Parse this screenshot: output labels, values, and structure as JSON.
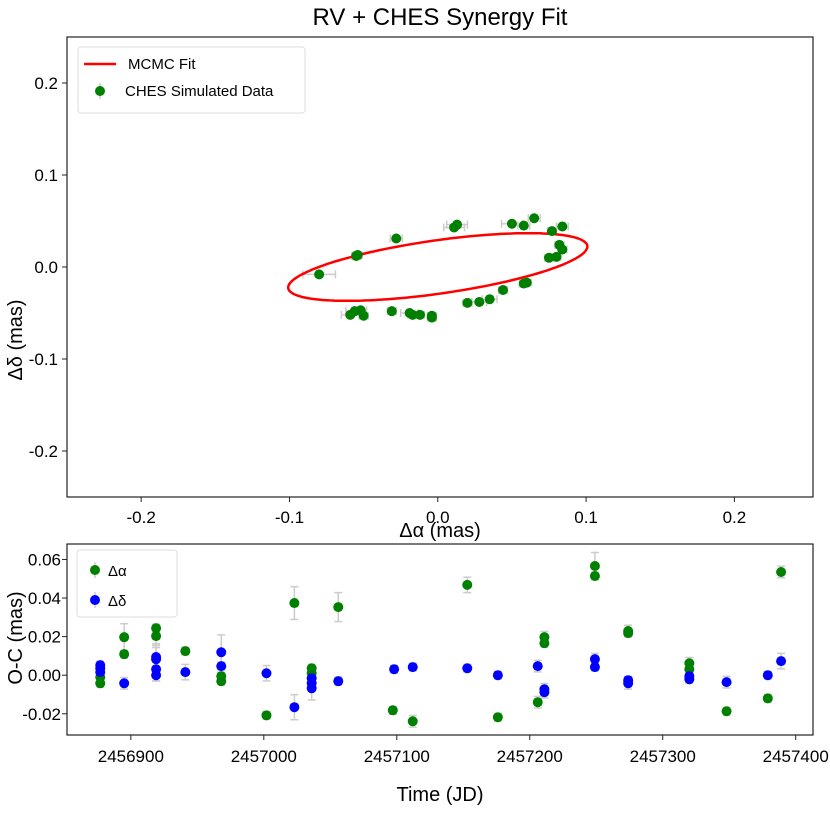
{
  "chart_data": [
    {
      "type": "scatter",
      "title": "RV + CHES Synergy Fit",
      "xlabel": "Δα (mas)",
      "ylabel": "Δδ (mas)",
      "xlim": [
        -0.25,
        0.253
      ],
      "ylim": [
        -0.25,
        0.25
      ],
      "xticks": [
        -0.2,
        -0.1,
        0.0,
        0.1,
        0.2
      ],
      "xtick_labels": [
        "-0.2",
        "-0.1",
        "0.0",
        "0.1",
        "0.2"
      ],
      "yticks": [
        0.2,
        0.1,
        0.0,
        -0.1,
        -0.2
      ],
      "ytick_labels": [
        "0.2",
        "0.1",
        "0.0",
        "-0.1",
        "-0.2"
      ],
      "grid": false,
      "legend": {
        "position": "top-left",
        "entries": [
          {
            "label": "MCMC Fit",
            "kind": "line",
            "color": "#ff0000"
          },
          {
            "label": "CHES Simulated Data",
            "kind": "errorbar-point",
            "color": "#008000"
          }
        ]
      },
      "fit_ellipse": {
        "label": "MCMC Fit",
        "color": "#ff0000",
        "center": [
          0.0,
          0.0
        ],
        "semi_major": 0.1035,
        "semi_minor": 0.0285,
        "rotation_deg": 13.5
      },
      "series": [
        {
          "name": "CHES Simulated Data",
          "color": "#008000",
          "errorbar_color": "#cccccc",
          "points": [
            {
              "x": -0.08,
              "y": -0.008,
              "xerr": 0.011
            },
            {
              "x": -0.055,
              "y": 0.012,
              "xerr": 0.003
            },
            {
              "x": -0.054,
              "y": 0.013,
              "xerr": 0.003
            },
            {
              "x": -0.028,
              "y": 0.031,
              "xerr": 0.004
            },
            {
              "x": 0.011,
              "y": 0.043,
              "xerr": 0.007
            },
            {
              "x": 0.013,
              "y": 0.046,
              "xerr": 0.007
            },
            {
              "x": 0.05,
              "y": 0.047,
              "xerr": 0.007
            },
            {
              "x": 0.058,
              "y": 0.045,
              "xerr": 0.004
            },
            {
              "x": 0.065,
              "y": 0.053,
              "xerr": 0.004
            },
            {
              "x": 0.077,
              "y": 0.039,
              "xerr": 0.003
            },
            {
              "x": 0.084,
              "y": 0.044,
              "xerr": 0.004
            },
            {
              "x": 0.082,
              "y": 0.024,
              "xerr": 0.003
            },
            {
              "x": 0.084,
              "y": 0.019,
              "xerr": 0.003
            },
            {
              "x": 0.075,
              "y": 0.01,
              "xerr": 0.003
            },
            {
              "x": 0.08,
              "y": 0.011,
              "xerr": 0.003
            },
            {
              "x": 0.058,
              "y": -0.018,
              "xerr": 0.003
            },
            {
              "x": 0.06,
              "y": -0.017,
              "xerr": 0.003
            },
            {
              "x": 0.044,
              "y": -0.025,
              "xerr": 0.003
            },
            {
              "x": 0.035,
              "y": -0.035,
              "xerr": 0.005
            },
            {
              "x": 0.028,
              "y": -0.038,
              "xerr": 0.005
            },
            {
              "x": 0.02,
              "y": -0.039,
              "xerr": 0.003
            },
            {
              "x": -0.059,
              "y": -0.052,
              "xerr": 0.006
            },
            {
              "x": -0.056,
              "y": -0.048,
              "xerr": 0.006
            },
            {
              "x": -0.052,
              "y": -0.047,
              "xerr": 0.004
            },
            {
              "x": -0.05,
              "y": -0.053,
              "xerr": 0.003
            },
            {
              "x": -0.031,
              "y": -0.048,
              "xerr": 0.003
            },
            {
              "x": -0.019,
              "y": -0.05,
              "xerr": 0.006
            },
            {
              "x": -0.017,
              "y": -0.052,
              "xerr": 0.003
            },
            {
              "x": -0.012,
              "y": -0.052,
              "xerr": 0.003
            },
            {
              "x": -0.004,
              "y": -0.053,
              "xerr": 0.003
            },
            {
              "x": -0.004,
              "y": -0.055,
              "xerr": 0.003
            }
          ]
        }
      ]
    },
    {
      "type": "scatter",
      "title": "",
      "xlabel": "Time (JD)",
      "ylabel": "O-C (mas)",
      "xlim": [
        2456852,
        2457413
      ],
      "ylim": [
        -0.031,
        0.068
      ],
      "xticks": [
        2456900,
        2457000,
        2457100,
        2457200,
        2457300,
        2457400
      ],
      "xtick_labels": [
        "2456900",
        "2457000",
        "2457100",
        "2457200",
        "2457300",
        "2457400"
      ],
      "yticks": [
        0.06,
        0.04,
        0.02,
        0.0,
        -0.02
      ],
      "ytick_labels": [
        "0.06",
        "0.04",
        "0.02",
        "0.00",
        "-0.02"
      ],
      "grid": false,
      "legend": {
        "position": "top-left",
        "entries": [
          {
            "label": "Δα",
            "kind": "errorbar-point",
            "color": "#008000"
          },
          {
            "label": "Δδ",
            "kind": "errorbar-point",
            "color": "#0000ff"
          }
        ]
      },
      "series": [
        {
          "name": "Δα",
          "color": "#008000",
          "errorbar_color": "#cccccc",
          "points": [
            {
              "t": 2456877,
              "v": -0.0042,
              "err": 0.002
            },
            {
              "t": 2456877,
              "v": -0.001,
              "err": 0.002
            },
            {
              "t": 2456895,
              "v": 0.0197,
              "err": 0.007
            },
            {
              "t": 2456895,
              "v": 0.0109,
              "err": 0.002
            },
            {
              "t": 2456919,
              "v": 0.0244,
              "err": 0.002
            },
            {
              "t": 2456919,
              "v": 0.0203,
              "err": 0.004
            },
            {
              "t": 2456941,
              "v": 0.0125,
              "err": 0.002
            },
            {
              "t": 2456968,
              "v": -0.0005,
              "err": 0.002
            },
            {
              "t": 2456968,
              "v": -0.0031,
              "err": 0.002
            },
            {
              "t": 2457002,
              "v": -0.0208,
              "err": 0.002
            },
            {
              "t": 2457023,
              "v": 0.0374,
              "err": 0.0085
            },
            {
              "t": 2457036,
              "v": 0.0036,
              "err": 0.002
            },
            {
              "t": 2457036,
              "v": 0.001,
              "err": 0.002
            },
            {
              "t": 2457056,
              "v": 0.0353,
              "err": 0.0075
            },
            {
              "t": 2457097,
              "v": -0.0182,
              "err": 0.002
            },
            {
              "t": 2457112,
              "v": -0.0239,
              "err": 0.003
            },
            {
              "t": 2457153,
              "v": 0.0468,
              "err": 0.004
            },
            {
              "t": 2457176,
              "v": -0.0218,
              "err": 0.002
            },
            {
              "t": 2457206,
              "v": -0.014,
              "err": 0.003
            },
            {
              "t": 2457211,
              "v": 0.0197,
              "err": 0.003
            },
            {
              "t": 2457211,
              "v": 0.0166,
              "err": 0.002
            },
            {
              "t": 2457249,
              "v": 0.0566,
              "err": 0.007
            },
            {
              "t": 2457249,
              "v": 0.0514,
              "err": 0.002
            },
            {
              "t": 2457274,
              "v": 0.0229,
              "err": 0.003
            },
            {
              "t": 2457274,
              "v": 0.0218,
              "err": 0.002
            },
            {
              "t": 2457320,
              "v": 0.0062,
              "err": 0.003
            },
            {
              "t": 2457320,
              "v": 0.0031,
              "err": 0.002
            },
            {
              "t": 2457348,
              "v": -0.0187,
              "err": 0.002
            },
            {
              "t": 2457379,
              "v": -0.012,
              "err": 0.002
            },
            {
              "t": 2457389,
              "v": 0.0535,
              "err": 0.003
            }
          ]
        },
        {
          "name": "Δδ",
          "color": "#0000ff",
          "errorbar_color": "#cccccc",
          "points": [
            {
              "t": 2456877,
              "v": 0.0052,
              "err": 0.002
            },
            {
              "t": 2456877,
              "v": 0.0036,
              "err": 0.002
            },
            {
              "t": 2456877,
              "v": 0.0016,
              "err": 0.002
            },
            {
              "t": 2456895,
              "v": -0.0042,
              "err": 0.003
            },
            {
              "t": 2456919,
              "v": 0.0094,
              "err": 0.006
            },
            {
              "t": 2456919,
              "v": 0.0083,
              "err": 0.006
            },
            {
              "t": 2456919,
              "v": 0.0031,
              "err": 0.006
            },
            {
              "t": 2456919,
              "v": 0.0,
              "err": 0.003
            },
            {
              "t": 2456941,
              "v": 0.0016,
              "err": 0.004
            },
            {
              "t": 2456968,
              "v": 0.0119,
              "err": 0.009
            },
            {
              "t": 2456968,
              "v": 0.0047,
              "err": 0.002
            },
            {
              "t": 2457002,
              "v": 0.001,
              "err": 0.004
            },
            {
              "t": 2457023,
              "v": -0.0166,
              "err": 0.0065
            },
            {
              "t": 2457036,
              "v": -0.0016,
              "err": 0.002
            },
            {
              "t": 2457036,
              "v": -0.0042,
              "err": 0.002
            },
            {
              "t": 2457036,
              "v": -0.0068,
              "err": 0.006
            },
            {
              "t": 2457056,
              "v": -0.0031,
              "err": 0.002
            },
            {
              "t": 2457098,
              "v": 0.0031,
              "err": 0.002
            },
            {
              "t": 2457112,
              "v": 0.0042,
              "err": 0.002
            },
            {
              "t": 2457153,
              "v": 0.0036,
              "err": 0.002
            },
            {
              "t": 2457176,
              "v": 0.0,
              "err": 0.002
            },
            {
              "t": 2457206,
              "v": 0.0047,
              "err": 0.003
            },
            {
              "t": 2457211,
              "v": -0.0073,
              "err": 0.003
            },
            {
              "t": 2457211,
              "v": -0.0088,
              "err": 0.003
            },
            {
              "t": 2457249,
              "v": 0.0083,
              "err": 0.003
            },
            {
              "t": 2457249,
              "v": 0.0042,
              "err": 0.002
            },
            {
              "t": 2457274,
              "v": -0.0026,
              "err": 0.002
            },
            {
              "t": 2457274,
              "v": -0.0042,
              "err": 0.003
            },
            {
              "t": 2457320,
              "v": -0.0005,
              "err": 0.002
            },
            {
              "t": 2457320,
              "v": -0.0021,
              "err": 0.002
            },
            {
              "t": 2457348,
              "v": -0.0036,
              "err": 0.003
            },
            {
              "t": 2457379,
              "v": 0.0,
              "err": 0.002
            },
            {
              "t": 2457389,
              "v": 0.0073,
              "err": 0.004
            }
          ]
        }
      ]
    }
  ]
}
